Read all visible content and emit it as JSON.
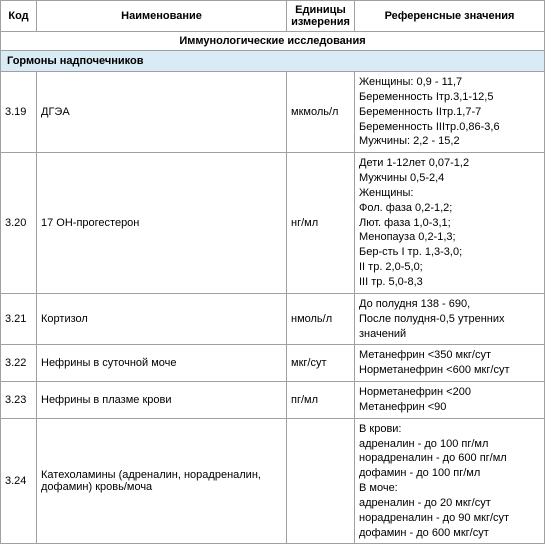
{
  "headers": {
    "code": "Код",
    "name": "Наименование",
    "unit": "Единицы измерения",
    "ref": "Референсные значения"
  },
  "section": "Иммунологические исследования",
  "subsection": "Гормоны надпочечников",
  "rows": [
    {
      "code": "3.19",
      "name": "ДГЭА",
      "unit": "мкмоль/л",
      "ref": "Женщины: 0,9 - 11,7\nБеременность Iтр.3,1-12,5\nБеременность IIтр.1,7-7\nБеременность IIIтр.0,86-3,6\nМужчины: 2,2 - 15,2"
    },
    {
      "code": "3.20",
      "name": "17 ОН-прогестерон",
      "unit": "нг/мл",
      "ref": "Дети 1-12лет 0,07-1,2\nМужчины 0,5-2,4\nЖенщины:\nФол. фаза 0,2-1,2;\nЛют. фаза 1,0-3,1;\nМенопауза 0,2-1,3;\nБер-сть I тр. 1,3-3,0;\nII тр. 2,0-5,0;\nIII тр. 5,0-8,3"
    },
    {
      "code": "3.21",
      "name": "Кортизол",
      "unit": "нмоль/л",
      "ref": "До полудня 138 - 690,\nПосле полудня-0,5 утренних значений"
    },
    {
      "code": "3.22",
      "name": "Нефрины в суточной моче",
      "unit": "мкг/сут",
      "ref": "Метанефрин <350 мкг/сут\nНорметанефрин <600 мкг/сут"
    },
    {
      "code": "3.23",
      "name": "Нефрины в плазме крови",
      "unit": "пг/мл",
      "ref": "Норметанефрин <200\nМетанефрин <90"
    },
    {
      "code": "3.24",
      "name": "Катехоламины (адреналин, норадреналин, дофамин) кровь/моча",
      "unit": "",
      "ref": "В крови:\nадреналин - до 100 пг/мл\nнорадреналин - до 600 пг/мл\nдофамин - до 100 пг/мл\nВ моче:\nадреналин - до 20 мкг/сут\nнорадреналин - до 90 мкг/сут\nдофамин - до 600 мкг/сут"
    }
  ],
  "styles": {
    "border_color": "#a0a0a0",
    "subsection_bg": "#d9ebf5",
    "font_size": 11
  }
}
